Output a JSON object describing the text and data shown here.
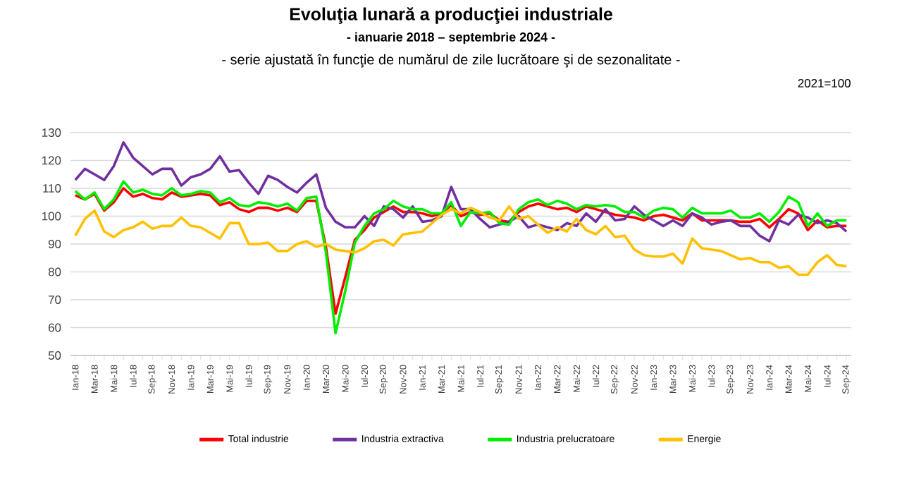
{
  "chart_data": {
    "type": "line",
    "title": "Evoluţia lunară a producţiei industriale",
    "subtitle": "- ianuarie 2018 – septembrie 2024 -",
    "annotations": [
      "- serie ajustată în funcţie de numărul de zile lucrătoare şi de sezonalitate -",
      "2021=100"
    ],
    "categories": [
      "Ian-18",
      null,
      "Mar-18",
      null,
      "Mai-18",
      null,
      "Iul-18",
      null,
      "Sep-18",
      null,
      "Nov-18",
      null,
      "Ian-19",
      null,
      "Mar-19",
      null,
      "Mai-19",
      null,
      "Iul-19",
      null,
      "Sep-19",
      null,
      "Nov-19",
      null,
      "Ian-20",
      null,
      "Mar-20",
      null,
      "Mai-20",
      null,
      "Iul-20",
      null,
      "Sep-20",
      null,
      "Nov-20",
      null,
      "Ian-21",
      null,
      "Mar-21",
      null,
      "Mai-21",
      null,
      "Iul-21",
      null,
      "Sep-21",
      null,
      "Nov-21",
      null,
      "Ian-22",
      null,
      "Mar-22",
      null,
      "Mai-22",
      null,
      "Iul-22",
      null,
      "Sep-22",
      null,
      "Nov-22",
      null,
      "Ian-23",
      null,
      "Mar-23",
      null,
      "Mai-23",
      null,
      "Iul-23",
      null,
      "Sep-23",
      null,
      "Nov-23",
      null,
      "Ian-24",
      null,
      "Mar-24",
      null,
      "Mai-24",
      null,
      "Iul-24",
      null,
      "Sep-24"
    ],
    "series": [
      {
        "name": "Total industrie",
        "color": "#ff0000",
        "values": [
          107.5,
          106,
          108,
          102,
          105,
          110,
          107,
          108,
          106.5,
          106,
          108.5,
          107,
          107.5,
          108,
          107.5,
          104,
          105,
          102.5,
          101.5,
          103,
          103,
          102,
          103,
          101.5,
          105.5,
          105.5,
          89,
          65,
          78,
          91.5,
          95,
          99.5,
          101.5,
          103.5,
          101.5,
          101.5,
          101,
          100,
          101,
          104,
          100,
          101.5,
          100.5,
          101,
          98.5,
          98,
          101.5,
          103.5,
          104.5,
          103.5,
          102.5,
          103,
          101.5,
          103.5,
          102.5,
          101.5,
          100.5,
          100,
          99.5,
          98.5,
          100,
          100.5,
          99.5,
          98.5,
          101,
          98.5,
          98.5,
          98.5,
          98.5,
          98,
          98,
          99,
          96,
          99,
          102.5,
          101,
          95,
          98.5,
          96,
          96.5,
          96.5
        ]
      },
      {
        "name": "Industria extractiva",
        "color": "#7030a0",
        "values": [
          113,
          117,
          115,
          113,
          118,
          126.5,
          121,
          118,
          115,
          117,
          117,
          111,
          114,
          115,
          117,
          121.5,
          116,
          116.5,
          112,
          108,
          114.5,
          113,
          110.5,
          108.5,
          112,
          115,
          103,
          98,
          96,
          96,
          100,
          96.5,
          103.5,
          102.5,
          99.5,
          103.5,
          98,
          98.5,
          100,
          110.5,
          102.5,
          102.5,
          99,
          96,
          97,
          98,
          100,
          96,
          97,
          96,
          95,
          97.5,
          96.5,
          101,
          98,
          102.5,
          98.5,
          99,
          103.5,
          100.5,
          98.5,
          96.5,
          98.5,
          96.5,
          101,
          99.5,
          97,
          98,
          98.5,
          96.5,
          96.5,
          93,
          91,
          98.5,
          97,
          100.5,
          99.5,
          97.5,
          98.5,
          97.5,
          94.5
        ]
      },
      {
        "name": "Industria prelucratoare",
        "color": "#00ee00",
        "values": [
          109,
          106,
          108.5,
          102.5,
          106,
          112.5,
          108.5,
          109.5,
          108,
          107.5,
          110,
          107.5,
          108,
          109,
          108.5,
          105,
          106.5,
          104,
          103.5,
          105,
          104.5,
          103.5,
          104.5,
          102,
          106.5,
          107,
          87,
          58,
          73,
          90.5,
          96.5,
          101,
          102.5,
          105.5,
          103.5,
          102.5,
          102.5,
          101,
          101,
          105,
          96.5,
          101.5,
          101,
          101.5,
          97.5,
          97,
          102.5,
          105,
          106,
          104,
          105.5,
          104.5,
          102.5,
          104,
          103.5,
          104,
          103.5,
          101.5,
          101.5,
          99.5,
          102,
          103,
          102.5,
          99.5,
          103,
          101,
          101,
          101,
          102,
          99.5,
          99.5,
          101,
          98,
          101.5,
          107,
          105,
          96.5,
          101,
          96.5,
          98.5,
          98.5
        ]
      },
      {
        "name": "Energie",
        "color": "#ffc000",
        "values": [
          93,
          99,
          102,
          94.5,
          92.5,
          95,
          96,
          98,
          95.5,
          96.5,
          96.5,
          99.5,
          96.5,
          96,
          94,
          92,
          97.5,
          97.5,
          90,
          90,
          90.5,
          87.5,
          87.5,
          90,
          91,
          89,
          90,
          88,
          87.5,
          87,
          88.5,
          91,
          91.5,
          89.5,
          93.5,
          94,
          94.5,
          97.5,
          100.5,
          102.5,
          101,
          103,
          101.5,
          99.5,
          98.5,
          103.5,
          99,
          100,
          97,
          94,
          96,
          94.5,
          99,
          95,
          93.5,
          96.5,
          92.5,
          93,
          88,
          86,
          85.5,
          85.5,
          86.5,
          83,
          92,
          88.5,
          88,
          87.5,
          86,
          84.5,
          85,
          83.5,
          83.5,
          81.5,
          82,
          79,
          79,
          83.5,
          86,
          82.5,
          82
        ]
      }
    ],
    "ylim": [
      50,
      130
    ],
    "yticks": [
      50,
      60,
      70,
      80,
      90,
      100,
      110,
      120,
      130
    ],
    "grid": "y",
    "legend": "bottom",
    "marker": "none",
    "line_style": "solid"
  }
}
